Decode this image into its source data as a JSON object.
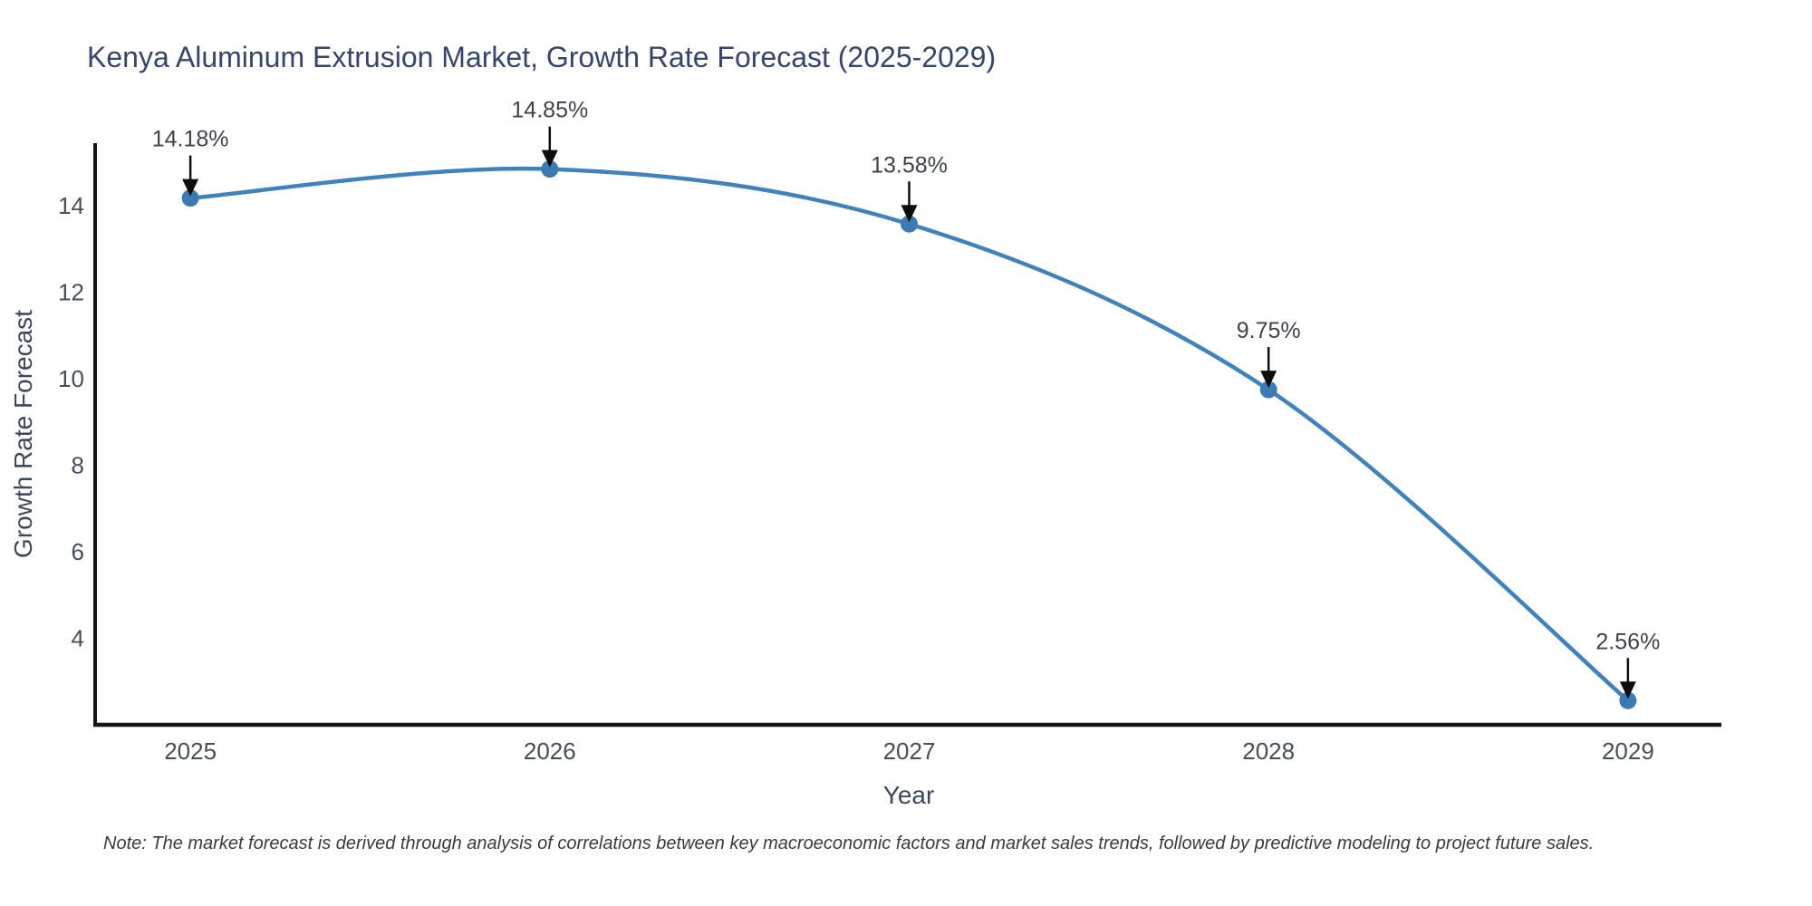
{
  "page": {
    "note": "Note: The market forecast is derived through analysis of correlations between key macroeconomic factors and market sales trends, followed by predictive modeling to project future sales."
  },
  "chart_data": {
    "type": "line",
    "title": "Kenya Aluminum Extrusion Market, Growth Rate Forecast (2025-2029)",
    "xlabel": "Year",
    "ylabel": "Growth Rate Forecast",
    "x": [
      2025,
      2026,
      2027,
      2028,
      2029
    ],
    "values": [
      14.18,
      14.85,
      13.58,
      9.75,
      2.56
    ],
    "point_labels": [
      "14.18%",
      "14.85%",
      "13.58%",
      "9.75%",
      "2.56%"
    ],
    "xticks": [
      "2025",
      "2026",
      "2027",
      "2028",
      "2029"
    ],
    "yticks": [
      4,
      6,
      8,
      10,
      12,
      14
    ],
    "xlim": [
      2024.735,
      2029.26
    ],
    "ylim": [
      2.0,
      15.45
    ],
    "grid": false,
    "legend": false,
    "line_shape": "spline",
    "colors": {
      "line": "#4282ba",
      "marker": "#3b7ab3",
      "spine": "#141414",
      "tick_label": "#474e59",
      "annotation_text": "#3d424b",
      "annotation_arrow": "#0d0d0d",
      "title": "#35466a",
      "axis_label": "#3c485c"
    }
  }
}
